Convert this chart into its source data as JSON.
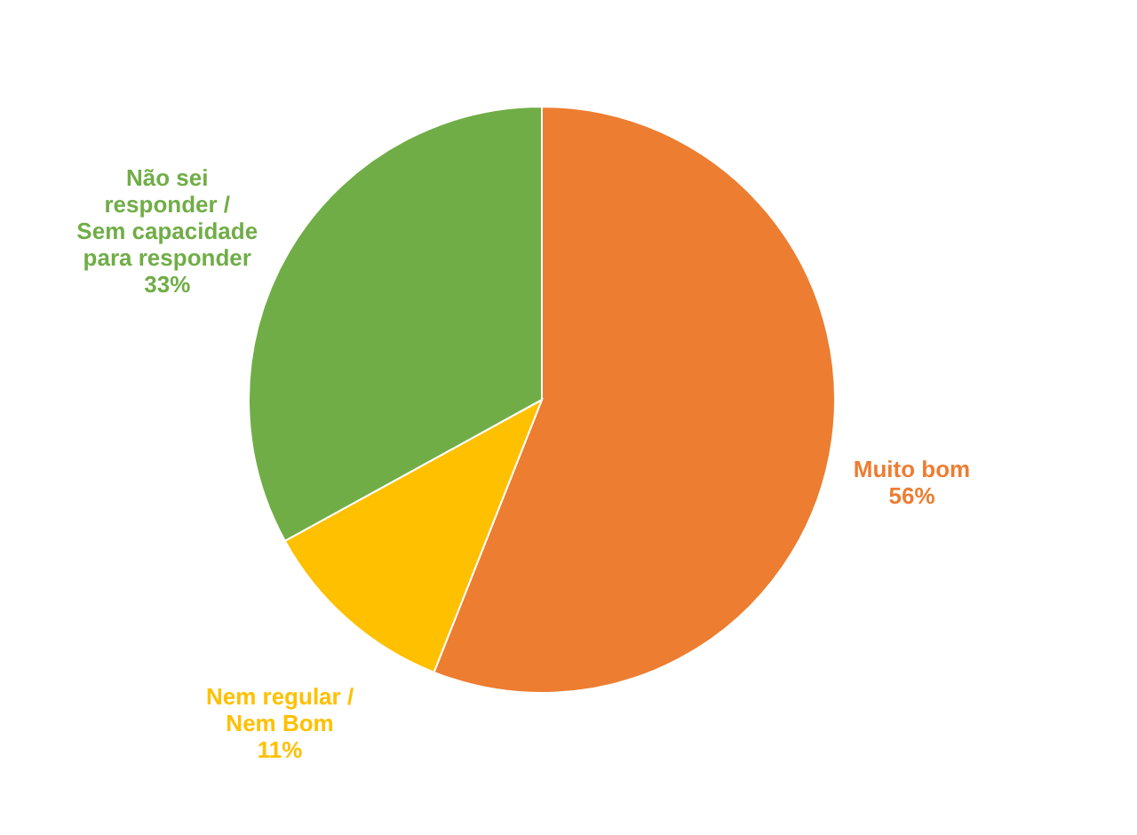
{
  "chart_data": {
    "type": "pie",
    "categories": [
      "Muito bom",
      "Nem regular / Nem Bom",
      "Não sei responder / Sem capacidade para responder"
    ],
    "values": [
      56,
      11,
      33
    ],
    "colors": [
      "#ed7d31",
      "#ffc000",
      "#70ad47"
    ],
    "value_labels": [
      "56%",
      "11%",
      "33%"
    ],
    "legend": false
  }
}
